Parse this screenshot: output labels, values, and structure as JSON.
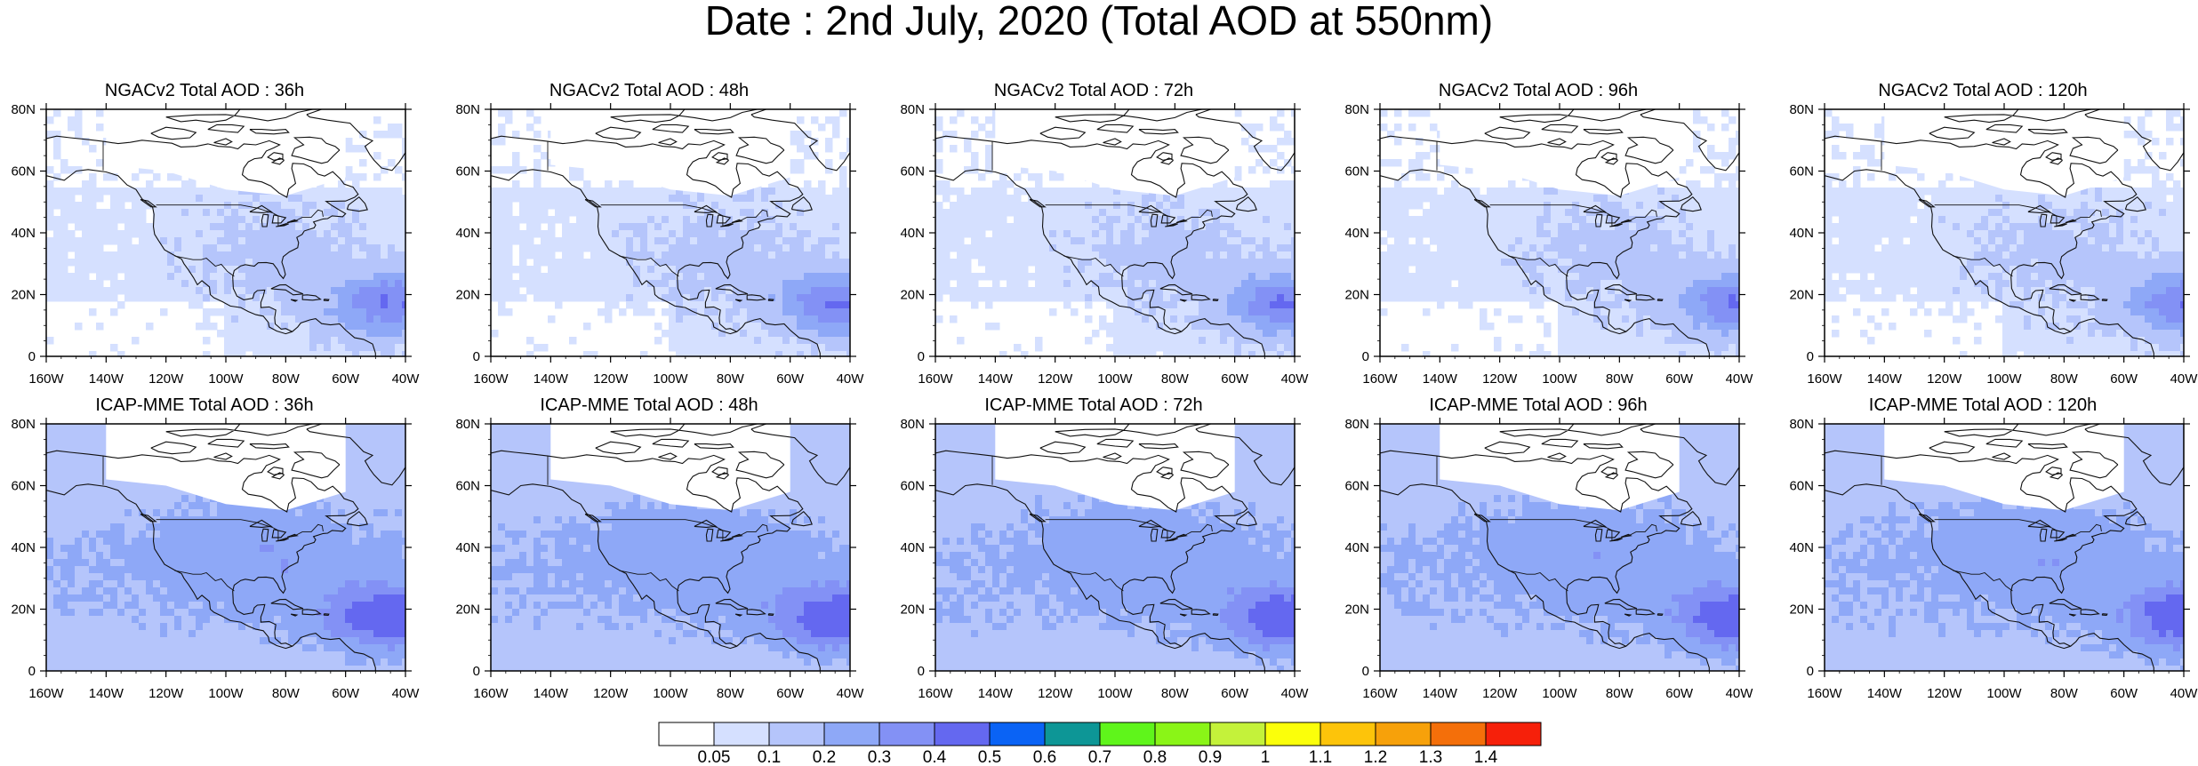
{
  "title": "Date : 2nd July, 2020 (Total AOD at 550nm)",
  "panels": [
    {
      "title": "NGACv2 Total AOD : 36h"
    },
    {
      "title": "NGACv2 Total AOD : 48h"
    },
    {
      "title": "NGACv2 Total AOD : 72h"
    },
    {
      "title": "NGACv2 Total AOD : 96h"
    },
    {
      "title": "NGACv2 Total AOD : 120h"
    },
    {
      "title": "ICAP-MME Total AOD : 36h"
    },
    {
      "title": "ICAP-MME Total AOD : 48h"
    },
    {
      "title": "ICAP-MME Total AOD : 72h"
    },
    {
      "title": "ICAP-MME Total AOD : 96h"
    },
    {
      "title": "ICAP-MME Total AOD : 120h"
    }
  ],
  "map_axes": {
    "lon_labels": [
      "160W",
      "140W",
      "120W",
      "100W",
      "80W",
      "60W",
      "40W"
    ],
    "lat_labels": [
      "0",
      "20N",
      "40N",
      "60N",
      "80N"
    ],
    "lon_range": [
      -160,
      -40
    ],
    "lat_range": [
      0,
      80
    ]
  },
  "colorbar": {
    "labels": [
      "0.05",
      "0.1",
      "0.2",
      "0.3",
      "0.4",
      "0.5",
      "0.6",
      "0.7",
      "0.8",
      "0.9",
      "1",
      "1.1",
      "1.2",
      "1.3",
      "1.4"
    ],
    "colors": [
      "#ffffff",
      "#d5e0ff",
      "#b5c5fb",
      "#8ea8f7",
      "#8391f5",
      "#6468f0",
      "#0a63f5",
      "#0d9696",
      "#5ff51b",
      "#8af517",
      "#c4f23a",
      "#fbff0a",
      "#fdc40a",
      "#f7a10a",
      "#f46f0a",
      "#f6200a"
    ]
  }
}
